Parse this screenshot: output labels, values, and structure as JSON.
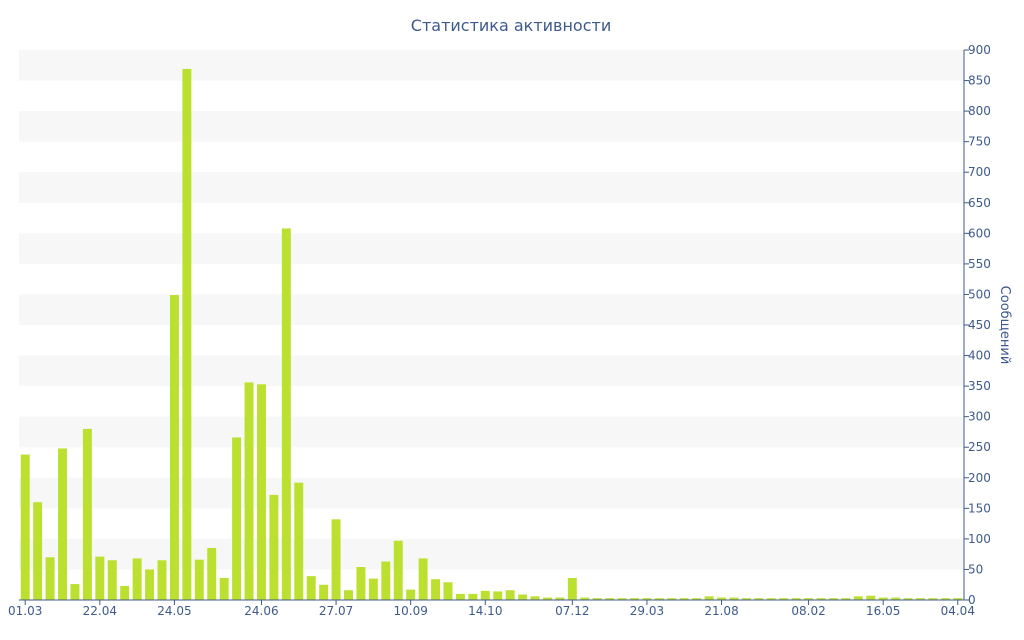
{
  "colors": {
    "bar": "#bbe02f",
    "band": "#f7f7f7",
    "axis": "#3e5a8c",
    "text": "#3e5a8c"
  },
  "chart_data": {
    "type": "bar",
    "title": "Статистика активности",
    "ylabel": "Сообщений",
    "xlabel": "",
    "y_axis_side": "right",
    "ylim": [
      0,
      900
    ],
    "y_ticks": [
      0,
      50,
      100,
      150,
      200,
      250,
      300,
      350,
      400,
      450,
      500,
      550,
      600,
      650,
      700,
      750,
      800,
      850,
      900
    ],
    "grid": "alternating horizontal bands",
    "x_tick_labels": [
      {
        "index": 0,
        "label": "01.03"
      },
      {
        "index": 6,
        "label": "22.04"
      },
      {
        "index": 12,
        "label": "24.05"
      },
      {
        "index": 19,
        "label": "24.06"
      },
      {
        "index": 25,
        "label": "27.07"
      },
      {
        "index": 31,
        "label": "10.09"
      },
      {
        "index": 37,
        "label": "14.10"
      },
      {
        "index": 44,
        "label": "07.12"
      },
      {
        "index": 50,
        "label": "29.03"
      },
      {
        "index": 56,
        "label": "21.08"
      },
      {
        "index": 63,
        "label": "08.02"
      },
      {
        "index": 69,
        "label": "16.05"
      },
      {
        "index": 75,
        "label": "04.04"
      }
    ],
    "values": [
      238,
      160,
      70,
      248,
      26,
      280,
      71,
      65,
      23,
      68,
      50,
      65,
      499,
      869,
      66,
      85,
      36,
      266,
      356,
      353,
      172,
      608,
      192,
      39,
      25,
      132,
      16,
      54,
      35,
      63,
      97,
      17,
      68,
      34,
      29,
      10,
      10,
      15,
      14,
      16,
      9,
      6,
      4,
      4,
      36,
      4,
      3,
      3,
      3,
      3,
      3,
      3,
      3,
      3,
      3,
      6,
      4,
      4,
      3,
      3,
      3,
      3,
      3,
      3,
      3,
      3,
      3,
      6,
      7,
      4,
      4,
      3,
      3,
      3,
      3,
      3
    ]
  }
}
